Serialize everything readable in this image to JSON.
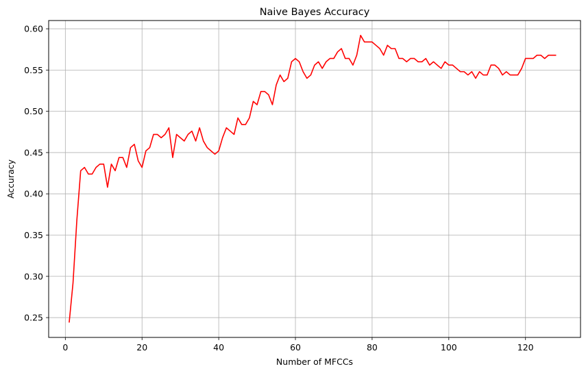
{
  "chart_data": {
    "type": "line",
    "title": "Naive Bayes Accuracy",
    "xlabel": "Number of MFCCs",
    "ylabel": "Accuracy",
    "xlim": [
      -4.35,
      134.35
    ],
    "ylim": [
      0.226,
      0.61
    ],
    "xticks": [
      0,
      20,
      40,
      60,
      80,
      100,
      120
    ],
    "yticks": [
      0.25,
      0.3,
      0.35,
      0.4,
      0.45,
      0.5,
      0.55,
      0.6
    ],
    "xtick_labels": [
      "0",
      "20",
      "40",
      "60",
      "80",
      "100",
      "120"
    ],
    "ytick_labels": [
      "0.25",
      "0.30",
      "0.35",
      "0.40",
      "0.45",
      "0.50",
      "0.55",
      "0.60"
    ],
    "grid": true,
    "legend": false,
    "series": [
      {
        "color": "#ff0000",
        "x": [
          1,
          2,
          3,
          4,
          5,
          6,
          7,
          8,
          9,
          10,
          11,
          12,
          13,
          14,
          15,
          16,
          17,
          18,
          19,
          20,
          21,
          22,
          23,
          24,
          25,
          26,
          27,
          28,
          29,
          30,
          31,
          32,
          33,
          34,
          35,
          36,
          37,
          38,
          39,
          40,
          41,
          42,
          43,
          44,
          45,
          46,
          47,
          48,
          49,
          50,
          51,
          52,
          53,
          54,
          55,
          56,
          57,
          58,
          59,
          60,
          61,
          62,
          63,
          64,
          65,
          66,
          67,
          68,
          69,
          70,
          71,
          72,
          73,
          74,
          75,
          76,
          77,
          78,
          79,
          80,
          81,
          82,
          83,
          84,
          85,
          86,
          87,
          88,
          89,
          90,
          91,
          92,
          93,
          94,
          95,
          96,
          97,
          98,
          99,
          100,
          101,
          102,
          103,
          104,
          105,
          106,
          107,
          108,
          109,
          110,
          111,
          112,
          113,
          114,
          115,
          116,
          117,
          118,
          119,
          120,
          121,
          122,
          123,
          124,
          125,
          126,
          127,
          128
        ],
        "y": [
          0.244,
          0.292,
          0.368,
          0.428,
          0.432,
          0.424,
          0.424,
          0.432,
          0.436,
          0.436,
          0.408,
          0.436,
          0.428,
          0.444,
          0.444,
          0.432,
          0.456,
          0.46,
          0.44,
          0.432,
          0.452,
          0.456,
          0.472,
          0.472,
          0.468,
          0.472,
          0.48,
          0.444,
          0.472,
          0.468,
          0.464,
          0.472,
          0.476,
          0.464,
          0.48,
          0.464,
          0.456,
          0.452,
          0.448,
          0.452,
          0.468,
          0.48,
          0.476,
          0.472,
          0.492,
          0.484,
          0.484,
          0.492,
          0.512,
          0.508,
          0.524,
          0.524,
          0.52,
          0.508,
          0.532,
          0.544,
          0.536,
          0.54,
          0.56,
          0.564,
          0.56,
          0.548,
          0.54,
          0.544,
          0.556,
          0.56,
          0.552,
          0.56,
          0.564,
          0.564,
          0.572,
          0.576,
          0.564,
          0.564,
          0.556,
          0.568,
          0.592,
          0.584,
          0.584,
          0.584,
          0.58,
          0.576,
          0.568,
          0.58,
          0.576,
          0.576,
          0.564,
          0.564,
          0.56,
          0.564,
          0.564,
          0.56,
          0.56,
          0.564,
          0.556,
          0.56,
          0.556,
          0.552,
          0.56,
          0.556,
          0.556,
          0.552,
          0.548,
          0.548,
          0.544,
          0.548,
          0.54,
          0.548,
          0.544,
          0.544,
          0.556,
          0.556,
          0.552,
          0.544,
          0.548,
          0.544,
          0.544,
          0.544,
          0.552,
          0.564,
          0.564,
          0.564,
          0.568,
          0.568,
          0.564,
          0.568,
          0.568,
          0.568
        ]
      }
    ]
  }
}
